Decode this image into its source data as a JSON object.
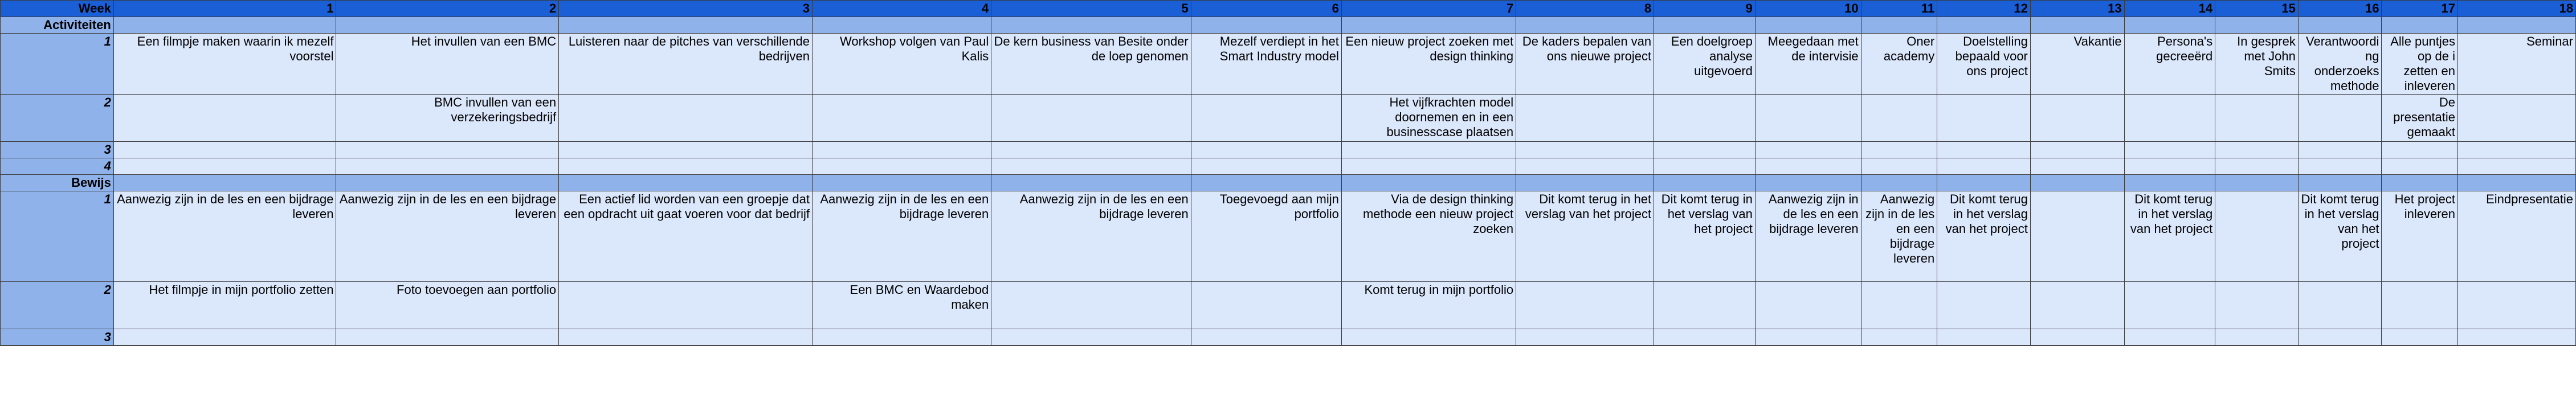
{
  "header": {
    "week_label": "Week",
    "weeks": [
      "1",
      "2",
      "3",
      "4",
      "5",
      "6",
      "7",
      "8",
      "9",
      "10",
      "11",
      "12",
      "13",
      "14",
      "15",
      "16",
      "17",
      "18"
    ]
  },
  "sections": {
    "activiteiten": {
      "label": "Activiteiten",
      "rows": [
        {
          "num": "1",
          "cells": [
            "Een filmpje maken waarin ik mezelf voorstel",
            "Het invullen van een BMC",
            "Luisteren naar de pitches van verschillende bedrijven",
            "Workshop volgen van Paul Kalis",
            "De kern business van Besite onder de loep genomen",
            "Mezelf verdiept in het Smart Industry model",
            "Een nieuw project zoeken met  design thinking",
            "De kaders bepalen van ons nieuwe project",
            "Een doelgroep analyse uitgevoerd",
            "Meegedaan met de intervisie",
            "Oner academy",
            "Doelstelling bepaald voor ons project",
            "Vakantie",
            "Persona's gecreeërd",
            "In gesprek met John Smits",
            "Verantwoording onderzoeks methode",
            "Alle puntjes op de i zetten en inleveren",
            "Seminar"
          ]
        },
        {
          "num": "2",
          "cells": [
            "",
            "BMC invullen van een verzekeringsbedrijf",
            "",
            "",
            "",
            "",
            "Het vijfkrachten model doornemen en in een businesscase plaatsen",
            "",
            "",
            "",
            "",
            "",
            "",
            "",
            "",
            "",
            "De presentatie gemaakt",
            ""
          ]
        },
        {
          "num": "3",
          "cells": [
            "",
            "",
            "",
            "",
            "",
            "",
            "",
            "",
            "",
            "",
            "",
            "",
            "",
            "",
            "",
            "",
            "",
            ""
          ]
        },
        {
          "num": "4",
          "cells": [
            "",
            "",
            "",
            "",
            "",
            "",
            "",
            "",
            "",
            "",
            "",
            "",
            "",
            "",
            "",
            "",
            "",
            ""
          ]
        }
      ]
    },
    "bewijs": {
      "label": "Bewijs",
      "rows": [
        {
          "num": "1",
          "cells": [
            "Aanwezig zijn in de les en een bijdrage leveren",
            "Aanwezig zijn in de les en een bijdrage leveren",
            "Een actief lid worden van een groepje dat een opdracht uit gaat voeren voor dat bedrijf",
            "Aanwezig zijn in de les en een bijdrage leveren",
            "Aanwezig zijn in de les en een bijdrage leveren",
            "Toegevoegd aan mijn portfolio",
            "Via de design thinking methode een nieuw project zoeken",
            "Dit komt terug in het verslag van het project",
            "Dit komt terug in het verslag van het project",
            "Aanwezig zijn in de les en een bijdrage leveren",
            "Aanwezig zijn in de les en een bijdrage leveren",
            "Dit komt terug in het verslag van het project",
            "",
            "Dit komt terug in het verslag van het project",
            "",
            "Dit komt terug in het verslag van het project",
            "Het project inleveren",
            "Eindpresentatie"
          ]
        },
        {
          "num": "2",
          "cells": [
            "Het filmpje in mijn portfolio zetten",
            "Foto toevoegen aan portfolio",
            "",
            "Een BMC en Waardebod maken",
            "",
            "",
            "Komt terug in mijn portfolio",
            "",
            "",
            "",
            "",
            "",
            "",
            "",
            "",
            "",
            "",
            ""
          ]
        },
        {
          "num": "3",
          "cells": [
            "",
            "",
            "",
            "",
            "",
            "",
            "",
            "",
            "",
            "",
            "",
            "",
            "",
            "",
            "",
            "",
            "",
            ""
          ]
        }
      ]
    }
  },
  "colors": {
    "header_blue": "#1a5fd6",
    "section_blue": "#8fb2ea",
    "cell_blue": "#dbe7fb",
    "grid": "#3a3a3a"
  }
}
